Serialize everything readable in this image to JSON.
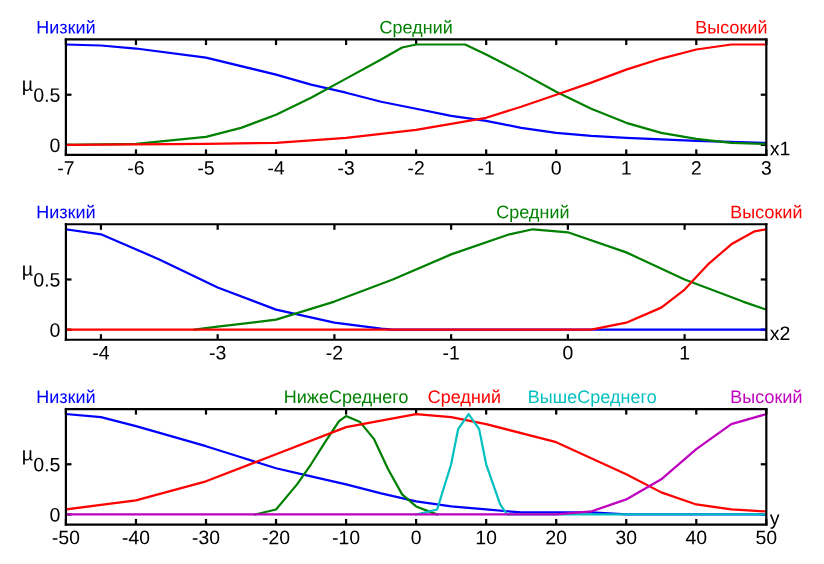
{
  "chart_data": [
    {
      "type": "line",
      "xlabel": "x1",
      "ylabel": "µ",
      "xlim": [
        -7,
        3
      ],
      "xticks": [
        -7,
        -6,
        -5,
        -4,
        -3,
        -2,
        -1,
        0,
        1,
        2,
        3
      ],
      "ylim": [
        -0.1,
        1.05
      ],
      "yticks": [
        0,
        0.5
      ],
      "series": [
        {
          "name": "Низкий",
          "color": "#0000ff",
          "x": [
            -7,
            -6.5,
            -6,
            -5,
            -4,
            -3.5,
            -3,
            -2.5,
            -2,
            -1.5,
            -1,
            -0.5,
            0,
            0.5,
            1,
            2,
            3
          ],
          "values": [
            1,
            0.99,
            0.96,
            0.87,
            0.7,
            0.6,
            0.52,
            0.43,
            0.36,
            0.29,
            0.24,
            0.17,
            0.12,
            0.09,
            0.07,
            0.04,
            0.02
          ]
        },
        {
          "name": "Средний",
          "color": "#008000",
          "x": [
            -7,
            -6,
            -5,
            -4.5,
            -4,
            -3.5,
            -3,
            -2.5,
            -2.2,
            -2,
            -1.3,
            -1,
            -0.5,
            0,
            0.5,
            1,
            1.5,
            2,
            2.5,
            3
          ],
          "values": [
            0,
            0.01,
            0.08,
            0.17,
            0.3,
            0.47,
            0.66,
            0.85,
            0.97,
            1,
            1,
            0.9,
            0.72,
            0.53,
            0.36,
            0.22,
            0.12,
            0.06,
            0.02,
            0.01
          ]
        },
        {
          "name": "Высокий",
          "color": "#ff0000",
          "x": [
            -7,
            -5,
            -4,
            -3,
            -2,
            -1,
            -0.5,
            0,
            0.5,
            1,
            1.5,
            2,
            2.5,
            3
          ],
          "values": [
            0,
            0.01,
            0.02,
            0.07,
            0.15,
            0.27,
            0.38,
            0.5,
            0.62,
            0.75,
            0.86,
            0.95,
            1,
            1
          ]
        }
      ],
      "legend": "top"
    },
    {
      "type": "line",
      "xlabel": "x2",
      "ylabel": "µ",
      "xlim": [
        -4.3,
        1.7
      ],
      "xticks": [
        -4,
        -3,
        -2,
        -1,
        0,
        1
      ],
      "ylim": [
        -0.1,
        1.05
      ],
      "yticks": [
        0,
        0.5
      ],
      "series": [
        {
          "name": "Низкий",
          "color": "#0000ff",
          "x": [
            -4.3,
            -4,
            -3.5,
            -3,
            -2.5,
            -2,
            -1.6,
            -1.5,
            1.7
          ],
          "values": [
            1,
            0.95,
            0.7,
            0.42,
            0.2,
            0.07,
            0.01,
            0,
            0
          ]
        },
        {
          "name": "Средний",
          "color": "#008000",
          "x": [
            -3.2,
            -3,
            -2.5,
            -2,
            -1.5,
            -1,
            -0.5,
            -0.3,
            0,
            0.5,
            1,
            1.5,
            1.7
          ],
          "values": [
            0,
            0.03,
            0.1,
            0.28,
            0.5,
            0.75,
            0.95,
            1,
            0.97,
            0.77,
            0.5,
            0.28,
            0.2
          ]
        },
        {
          "name": "Высокий",
          "color": "#ff0000",
          "x": [
            -4.3,
            0.2,
            0.5,
            0.8,
            1,
            1.2,
            1.4,
            1.6,
            1.7
          ],
          "values": [
            0,
            0,
            0.07,
            0.22,
            0.4,
            0.65,
            0.85,
            0.98,
            1
          ]
        }
      ],
      "legend": "top"
    },
    {
      "type": "line",
      "xlabel": "y",
      "ylabel": "µ",
      "xlim": [
        -50,
        50
      ],
      "xticks": [
        -50,
        -40,
        -30,
        -20,
        -10,
        0,
        10,
        20,
        30,
        40,
        50
      ],
      "ylim": [
        -0.1,
        1.05
      ],
      "yticks": [
        0,
        0.5
      ],
      "series": [
        {
          "name": "Низкий",
          "color": "#0000ff",
          "x": [
            -50,
            -45,
            -40,
            -30,
            -25,
            -20,
            -15,
            -10,
            -5,
            0,
            5,
            10,
            15,
            20,
            25,
            30,
            50
          ],
          "values": [
            1,
            0.97,
            0.88,
            0.68,
            0.57,
            0.46,
            0.38,
            0.3,
            0.21,
            0.13,
            0.08,
            0.05,
            0.02,
            0.02,
            0.02,
            0,
            0
          ]
        },
        {
          "name": "НижеСреднего",
          "color": "#008000",
          "x": [
            -23,
            -20,
            -17,
            -15,
            -13,
            -11,
            -10,
            -8,
            -6,
            -4,
            -2,
            0,
            3
          ],
          "values": [
            0,
            0.05,
            0.3,
            0.5,
            0.72,
            0.93,
            0.98,
            0.92,
            0.75,
            0.45,
            0.2,
            0.08,
            0
          ]
        },
        {
          "name": "Средний",
          "color": "#ff0000",
          "x": [
            -50,
            -40,
            -30,
            -20,
            -10,
            0,
            5,
            10,
            20,
            30,
            35,
            40,
            45,
            50
          ],
          "values": [
            0.05,
            0.14,
            0.33,
            0.6,
            0.87,
            1,
            0.97,
            0.9,
            0.72,
            0.4,
            0.22,
            0.1,
            0.05,
            0.03
          ]
        },
        {
          "name": "ВышеСреднего",
          "color": "#00bfbf",
          "x": [
            0,
            3,
            5,
            6,
            7.5,
            9,
            10,
            12,
            13,
            50
          ],
          "values": [
            0,
            0.05,
            0.5,
            0.85,
            1,
            0.85,
            0.5,
            0.1,
            0,
            0
          ]
        },
        {
          "name": "Высокий",
          "color": "#bf00bf",
          "x": [
            -50,
            20,
            25,
            30,
            35,
            40,
            45,
            50
          ],
          "values": [
            0,
            0,
            0.03,
            0.15,
            0.35,
            0.65,
            0.9,
            1
          ]
        }
      ],
      "legend": "top"
    }
  ]
}
